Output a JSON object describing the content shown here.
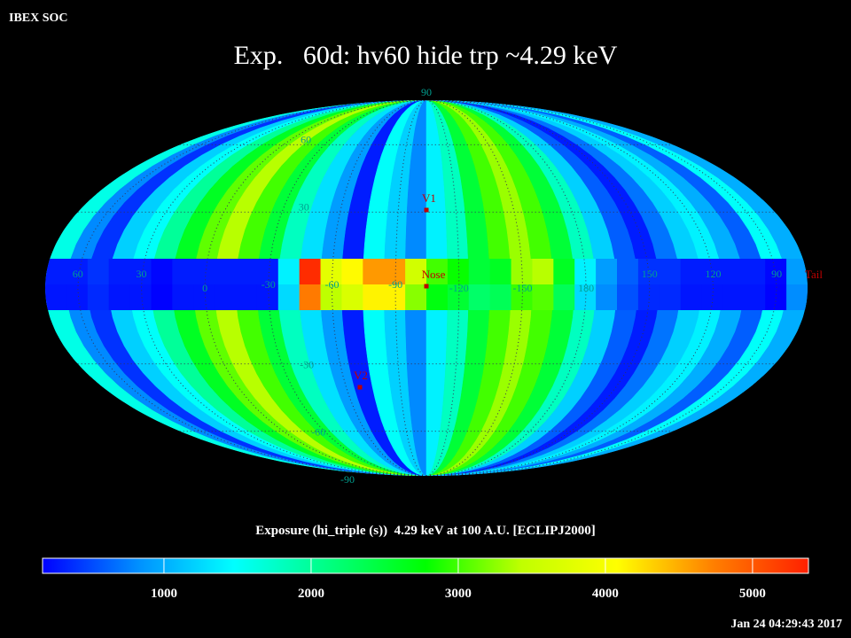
{
  "header": {
    "source": "IBEX SOC",
    "title": "Exp.   60d: hv60 hide trp ~4.29 keV",
    "timestamp": "Jan 24 04:29:43 2017"
  },
  "map": {
    "type": "heatmap",
    "projection": "mollweide",
    "longitude_bands": [
      1600,
      800,
      400,
      1200,
      1500,
      2000,
      2600,
      3100,
      3400,
      3000,
      2500,
      1800,
      1300,
      900,
      300,
      1500,
      1200,
      800,
      1400,
      1800,
      2500,
      3000,
      3300,
      3000,
      2500,
      1800,
      1200,
      600,
      300,
      700,
      1200,
      1400,
      1000,
      600,
      1500,
      1000
    ],
    "ecliptic_band": [
      300,
      300,
      400,
      300,
      300,
      200,
      300,
      300,
      300,
      300,
      300,
      1400,
      5300,
      3800,
      4100,
      4600,
      4600,
      3600,
      3000,
      2800,
      2500,
      2600,
      3300,
      3400,
      2600,
      1400,
      900,
      600,
      400,
      400,
      300,
      300,
      300,
      300,
      200,
      900
    ],
    "latitude_ticks": [
      90,
      60,
      30,
      -30,
      -60,
      -90
    ],
    "longitude_ticks": [
      60,
      30,
      0,
      -30,
      -60,
      -90,
      -120,
      -150,
      180,
      150,
      120,
      90
    ],
    "markers": [
      {
        "label": "V1"
      },
      {
        "label": "Nose"
      },
      {
        "label": "V2"
      },
      {
        "label": "Tail"
      }
    ]
  },
  "colorbar": {
    "title": "Exposure (hi_triple (s))  4.29 keV at 100 A.U. [ECLIPJ2000]",
    "lim": [
      175,
      5380
    ],
    "ticks": [
      1000,
      2000,
      3000,
      4000,
      5000
    ],
    "colors": [
      "#0000ff",
      "#0090ff",
      "#00ffff",
      "#00ff80",
      "#00ff00",
      "#c0ff00",
      "#ffff00",
      "#ff8000",
      "#ff2000"
    ]
  }
}
